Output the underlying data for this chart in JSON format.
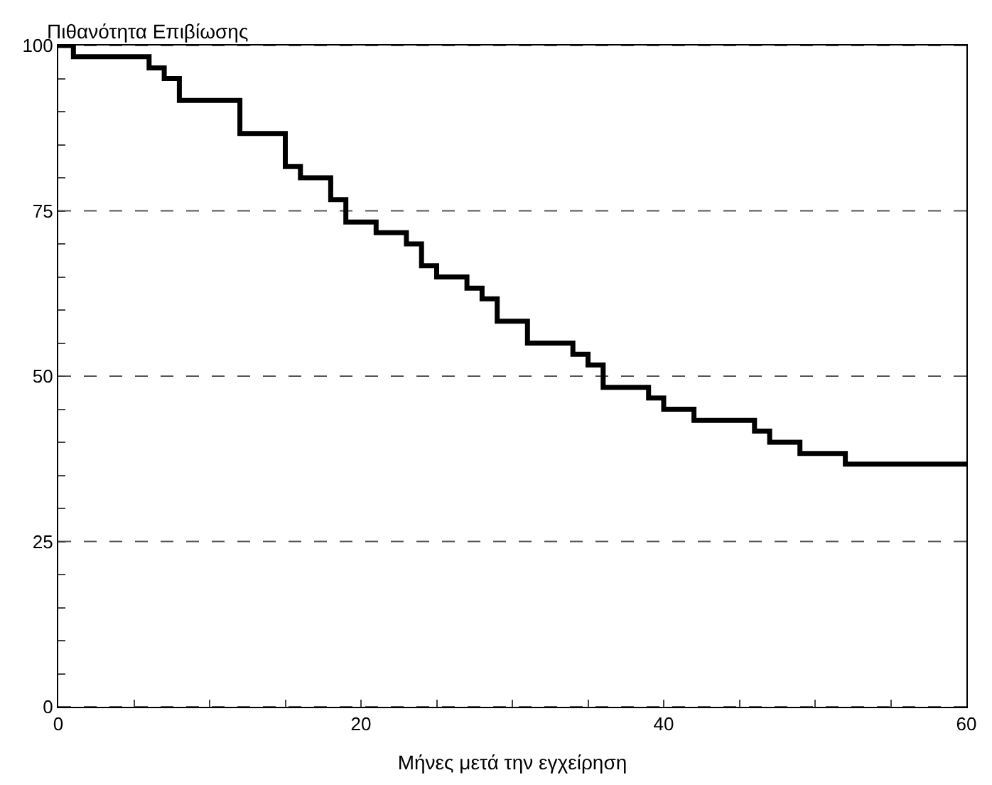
{
  "chart_data": {
    "type": "step",
    "ylabel": "Πιθανότητα Επιβίωσης",
    "xlabel": "Μήνες μετά την εγχείρηση",
    "x": [
      0,
      1,
      6,
      7,
      8,
      12,
      15,
      16,
      18,
      19,
      21,
      23,
      24,
      25,
      27,
      28,
      29,
      31,
      34,
      35,
      36,
      39,
      40,
      42,
      46,
      47,
      49,
      52,
      60
    ],
    "series": [
      {
        "color": "#000000",
        "values": [
          100,
          98.3,
          96.6,
          95,
          91.7,
          86.7,
          81.7,
          80,
          76.7,
          73.3,
          71.7,
          70,
          66.7,
          65,
          63.3,
          61.7,
          58.3,
          55,
          53.3,
          51.7,
          48.3,
          46.7,
          45,
          43.3,
          41.7,
          40,
          38.3,
          36.7,
          36.7
        ]
      }
    ],
    "xlim": [
      0,
      60
    ],
    "ylim": [
      0,
      100
    ],
    "xticks": [
      0,
      {
        "value": 5,
        "label": null
      },
      {
        "value": 10,
        "label": null
      },
      {
        "value": 15,
        "label": null
      },
      20,
      {
        "value": 25,
        "label": null
      },
      {
        "value": 30,
        "label": null
      },
      {
        "value": 35,
        "label": null
      },
      40,
      {
        "value": 45,
        "label": null
      },
      {
        "value": 50,
        "label": null
      },
      {
        "value": 55,
        "label": null
      },
      60
    ],
    "yticks": [
      0,
      {
        "value": 5,
        "label": null
      },
      {
        "value": 10,
        "label": null
      },
      {
        "value": 15,
        "label": null
      },
      {
        "value": 20,
        "label": null
      },
      25,
      {
        "value": 30,
        "label": null
      },
      {
        "value": 35,
        "label": null
      },
      {
        "value": 40,
        "label": null
      },
      {
        "value": 45,
        "label": null
      },
      50,
      {
        "value": 55,
        "label": null
      },
      {
        "value": 60,
        "label": null
      },
      {
        "value": 65,
        "label": null
      },
      {
        "value": 70,
        "label": null
      },
      75,
      {
        "value": 80,
        "label": null
      },
      {
        "value": 85,
        "label": null
      },
      {
        "value": 90,
        "label": null
      },
      {
        "value": 95,
        "label": null
      },
      100
    ],
    "grid": "y",
    "line_style": "solid",
    "marker": "none",
    "legend": false
  }
}
